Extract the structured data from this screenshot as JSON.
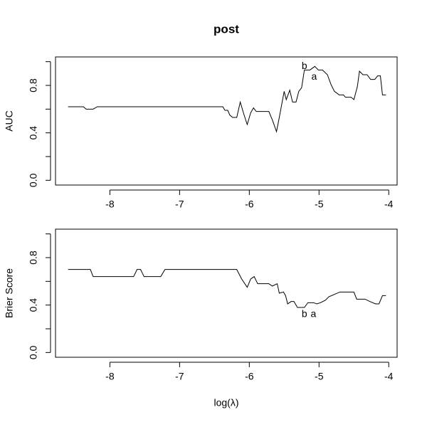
{
  "chart_data": [
    {
      "type": "line",
      "title": "post",
      "ylabel": "AUC",
      "color": "#000000",
      "xlim": [
        -8.78,
        -3.88
      ],
      "xticks": [
        -8,
        -7,
        -6,
        -5,
        -4
      ],
      "ylim": [
        -0.04,
        1.04
      ],
      "yticks": [
        {
          "value": 0,
          "label": "0.0"
        },
        {
          "value": 0.2,
          "label": null
        },
        {
          "value": 0.4,
          "label": "0.4"
        },
        {
          "value": 0.6,
          "label": null
        },
        {
          "value": 0.8,
          "label": "0.8"
        },
        {
          "value": 1,
          "label": null
        }
      ],
      "x": [
        -8.6,
        -8.38,
        -8.34,
        -8.24,
        -8.18,
        -6.38,
        -6.35,
        -6.31,
        -6.28,
        -6.24,
        -6.18,
        -6.13,
        -6.08,
        -6.03,
        -5.98,
        -5.94,
        -5.9,
        -5.72,
        -5.67,
        -5.61,
        -5.57,
        -5.5,
        -5.47,
        -5.42,
        -5.38,
        -5.33,
        -5.29,
        -5.25,
        -5.21,
        -5.13,
        -5.06,
        -5.01,
        -4.95,
        -4.88,
        -4.83,
        -4.78,
        -4.71,
        -4.65,
        -4.62,
        -4.54,
        -4.5,
        -4.45,
        -4.42,
        -4.37,
        -4.31,
        -4.26,
        -4.2,
        -4.16,
        -4.12,
        -4.09,
        -4.04
      ],
      "values": [
        0.62,
        0.62,
        0.6,
        0.6,
        0.62,
        0.62,
        0.59,
        0.59,
        0.55,
        0.53,
        0.53,
        0.66,
        0.56,
        0.47,
        0.57,
        0.61,
        0.58,
        0.58,
        0.51,
        0.41,
        0.53,
        0.75,
        0.68,
        0.76,
        0.66,
        0.66,
        0.75,
        0.78,
        0.93,
        0.93,
        0.96,
        0.93,
        0.93,
        0.89,
        0.81,
        0.75,
        0.72,
        0.72,
        0.7,
        0.7,
        0.68,
        0.79,
        0.92,
        0.89,
        0.89,
        0.85,
        0.85,
        0.88,
        0.88,
        0.72,
        0.72
      ],
      "annotations": [
        {
          "text": "b",
          "x": -5.21,
          "y": 0.96
        },
        {
          "text": "a",
          "x": -5.07,
          "y": 0.87
        }
      ]
    },
    {
      "type": "line",
      "ylabel": "Brier Score",
      "xlabel": "log(λ)",
      "color": "#000000",
      "xlim": [
        -8.78,
        -3.88
      ],
      "xticks": [
        -8,
        -7,
        -6,
        -5,
        -4
      ],
      "ylim": [
        -0.04,
        1.04
      ],
      "yticks": [
        {
          "value": 0,
          "label": "0.0"
        },
        {
          "value": 0.2,
          "label": null
        },
        {
          "value": 0.4,
          "label": "0.4"
        },
        {
          "value": 0.6,
          "label": null
        },
        {
          "value": 0.8,
          "label": "0.8"
        },
        {
          "value": 1,
          "label": null
        }
      ],
      "x": [
        -8.6,
        -8.28,
        -8.24,
        -7.66,
        -7.61,
        -7.56,
        -7.51,
        -7.27,
        -7.21,
        -6.18,
        -6.11,
        -6.03,
        -5.98,
        -5.93,
        -5.88,
        -5.72,
        -5.67,
        -5.6,
        -5.57,
        -5.51,
        -5.48,
        -5.45,
        -5.4,
        -5.36,
        -5.31,
        -5.21,
        -5.16,
        -5.08,
        -5.03,
        -4.98,
        -4.91,
        -4.86,
        -4.78,
        -4.7,
        -4.57,
        -4.5,
        -4.46,
        -4.34,
        -4.27,
        -4.19,
        -4.14,
        -4.09,
        -4.04
      ],
      "values": [
        0.7,
        0.7,
        0.64,
        0.64,
        0.7,
        0.7,
        0.64,
        0.64,
        0.7,
        0.7,
        0.62,
        0.55,
        0.62,
        0.64,
        0.58,
        0.58,
        0.56,
        0.58,
        0.5,
        0.51,
        0.48,
        0.41,
        0.43,
        0.43,
        0.38,
        0.38,
        0.42,
        0.42,
        0.41,
        0.42,
        0.44,
        0.47,
        0.49,
        0.51,
        0.51,
        0.51,
        0.45,
        0.45,
        0.43,
        0.41,
        0.41,
        0.48,
        0.48
      ],
      "annotations": [
        {
          "text": "b",
          "x": -5.21,
          "y": 0.32
        },
        {
          "text": "a",
          "x": -5.08,
          "y": 0.32
        }
      ]
    }
  ]
}
